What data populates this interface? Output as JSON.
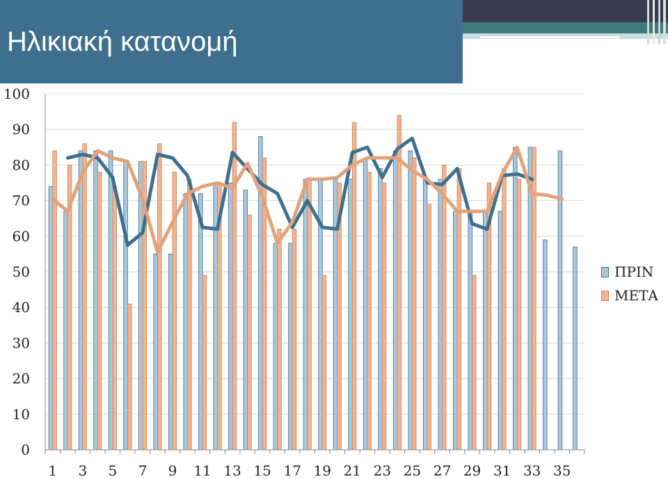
{
  "slide": {
    "title": "Ηλικιακή κατανομή"
  },
  "colors": {
    "title_bg": "#3f6f8f",
    "prin": "#a9c8e0",
    "prin_border": "#3f6f8f",
    "meta": "#f0b48e",
    "meta_border": "#c8865e",
    "prin_line": "#3d6f8f",
    "meta_line": "#e3a27a"
  },
  "chart_data": {
    "type": "bar",
    "categories": [
      1,
      2,
      3,
      4,
      5,
      6,
      7,
      8,
      9,
      10,
      11,
      12,
      13,
      14,
      15,
      16,
      17,
      18,
      19,
      20,
      21,
      22,
      23,
      24,
      25,
      26,
      27,
      28,
      29,
      30,
      31,
      32,
      33,
      34,
      35,
      36
    ],
    "x_tick_labels": [
      "1",
      "3",
      "5",
      "7",
      "9",
      "11",
      "13",
      "15",
      "17",
      "19",
      "21",
      "23",
      "25",
      "27",
      "29",
      "31",
      "33",
      "35"
    ],
    "y_ticks": [
      "0",
      "10",
      "20",
      "30",
      "40",
      "50",
      "60",
      "70",
      "80",
      "90",
      "100"
    ],
    "ylim": [
      0,
      100
    ],
    "grid": true,
    "legend_position": "right",
    "series": [
      {
        "name": "ΠΡΙΝ",
        "values": [
          74,
          67,
          84,
          84,
          84,
          81,
          81,
          55,
          55,
          72,
          72,
          75,
          75,
          73,
          88,
          58,
          58,
          76,
          76,
          76,
          76,
          82,
          79,
          84,
          84,
          76,
          76,
          67,
          67,
          67,
          67,
          85,
          85,
          59,
          84,
          57
        ]
      },
      {
        "name": "ΜΕΤΑ",
        "values": [
          84,
          80,
          86,
          78,
          74,
          41,
          81,
          86,
          78,
          76,
          49,
          75,
          92,
          66,
          82,
          62,
          62,
          76,
          49,
          75,
          92,
          78,
          75,
          94,
          82,
          69,
          80,
          79,
          49,
          75,
          79,
          76,
          85,
          null,
          null,
          null
        ]
      }
    ],
    "trend_lines": [
      {
        "series": "ΠΡΙΝ",
        "values": [
          null,
          82,
          83,
          82,
          76.5,
          57.5,
          61,
          83,
          82,
          77,
          62.5,
          62,
          83.5,
          79,
          74.5,
          72,
          62.5,
          70,
          62.5,
          62,
          83.5,
          85,
          76.5,
          84.5,
          87.5,
          75,
          74.5,
          79,
          63.5,
          62,
          77,
          77.5,
          76,
          null,
          null,
          null
        ]
      },
      {
        "series": "ΜΕΤΑ",
        "values": [
          70.5,
          67,
          78,
          84,
          82,
          81,
          70.5,
          55.5,
          64,
          72,
          74,
          75,
          73.5,
          80.5,
          71,
          58,
          64,
          76,
          76,
          76.5,
          80,
          82,
          82,
          82,
          78.5,
          76,
          72,
          67,
          67,
          67,
          77.5,
          85,
          72,
          71.5,
          70.5,
          null
        ]
      }
    ]
  }
}
